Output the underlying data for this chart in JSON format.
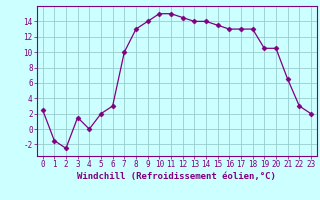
{
  "x": [
    0,
    1,
    2,
    3,
    4,
    5,
    6,
    7,
    8,
    9,
    10,
    11,
    12,
    13,
    14,
    15,
    16,
    17,
    18,
    19,
    20,
    21,
    22,
    23
  ],
  "y": [
    2.5,
    -1.5,
    -2.5,
    1.5,
    0.0,
    2.0,
    3.0,
    10.0,
    13.0,
    14.0,
    15.0,
    15.0,
    14.5,
    14.0,
    14.0,
    13.5,
    13.0,
    13.0,
    13.0,
    10.5,
    10.5,
    6.5,
    3.0,
    2.0
  ],
  "line_color": "#800080",
  "marker": "D",
  "marker_size": 2.5,
  "bg_color": "#ccffff",
  "grid_color": "#99cccc",
  "xlabel": "Windchill (Refroidissement éolien,°C)",
  "xlabel_color": "#800080",
  "tick_color": "#800080",
  "ylim": [
    -3.5,
    16
  ],
  "xlim": [
    -0.5,
    23.5
  ],
  "yticks": [
    -2,
    0,
    2,
    4,
    6,
    8,
    10,
    12,
    14
  ],
  "xticks": [
    0,
    1,
    2,
    3,
    4,
    5,
    6,
    7,
    8,
    9,
    10,
    11,
    12,
    13,
    14,
    15,
    16,
    17,
    18,
    19,
    20,
    21,
    22,
    23
  ],
  "spine_color": "#800080",
  "tick_fontsize": 5.5,
  "xlabel_fontsize": 6.5
}
